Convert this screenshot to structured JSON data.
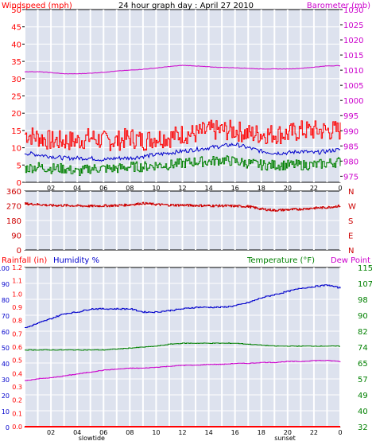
{
  "colors": {
    "wind": "#ff0000",
    "gust_avg": "#0000cc",
    "wind_low": "#008000",
    "baro": "#cc00cc",
    "direction": "#cc0000",
    "humidity": "#0000cc",
    "temperature": "#008000",
    "dewpoint": "#cc00cc",
    "rain": "#ff0000",
    "grid_band": "#dde2ee",
    "grid_line": "#ffffff"
  },
  "chart_data": [
    {
      "type": "line",
      "title": "24 hour graph day : April 27 2010",
      "left_label": "Windspeed (mph)",
      "right_label": "Barometer (mb)",
      "y_left_ticks": [
        "50",
        "45",
        "40",
        "35",
        "30",
        "25",
        "20",
        "15",
        "10",
        "5",
        "0"
      ],
      "y_right_ticks": [
        "1030",
        "1025",
        "1020",
        "1015",
        "1010",
        "1005",
        "1000",
        "995",
        "990",
        "985",
        "980",
        "975"
      ],
      "ylim_left": [
        0,
        50
      ],
      "ylim_right": [
        973,
        1030
      ],
      "x_ticks": [
        "02",
        "04",
        "06",
        "08",
        "10",
        "12",
        "14",
        "16",
        "18",
        "20",
        "22",
        "0"
      ],
      "x_annotations": [
        {
          "text": "slowtide",
          "hour": 5.1
        },
        {
          "text": "sunset",
          "hour": 19.8
        }
      ],
      "series": [
        {
          "name": "Windspeed (mph)",
          "axis": "left",
          "key": "wind",
          "x": [
            0,
            1,
            2,
            3,
            4,
            5,
            6,
            7,
            8,
            9,
            10,
            11,
            12,
            13,
            14,
            15,
            16,
            17,
            18,
            19,
            20,
            21,
            22,
            23,
            24
          ],
          "y": [
            14,
            13,
            12,
            12,
            12,
            13,
            12,
            12,
            13,
            12,
            13,
            13,
            14,
            14,
            15,
            15,
            15,
            14,
            14,
            14,
            14,
            15,
            15,
            15,
            15
          ]
        },
        {
          "name": "",
          "axis": "left",
          "key": "gust_avg",
          "x": [
            0,
            1,
            2,
            3,
            4,
            5,
            6,
            7,
            8,
            9,
            10,
            11,
            12,
            13,
            14,
            15,
            16,
            17,
            18,
            19,
            20,
            21,
            22,
            23,
            24
          ],
          "y": [
            8.5,
            8,
            7.5,
            7,
            7,
            7,
            6.5,
            7,
            7,
            7.5,
            8,
            8.5,
            9,
            9.5,
            10,
            10.5,
            11,
            10,
            9,
            8.5,
            8.5,
            9,
            8.5,
            9,
            9.5
          ]
        },
        {
          "name": "",
          "axis": "left",
          "key": "wind_low",
          "x": [
            0,
            1,
            2,
            3,
            4,
            5,
            6,
            7,
            8,
            9,
            10,
            11,
            12,
            13,
            14,
            15,
            16,
            17,
            18,
            19,
            20,
            21,
            22,
            23,
            24
          ],
          "y": [
            4,
            4.5,
            4,
            4,
            3,
            4,
            4,
            4,
            4.5,
            4.5,
            5,
            5,
            5.5,
            6,
            6,
            6.5,
            6,
            5.5,
            5,
            5,
            5,
            5,
            5,
            5.5,
            6
          ]
        },
        {
          "name": "Barometer (mb)",
          "axis": "right",
          "key": "baro",
          "x": [
            0,
            1,
            2,
            3,
            4,
            5,
            6,
            7,
            8,
            9,
            10,
            11,
            12,
            13,
            14,
            15,
            16,
            17,
            18,
            19,
            20,
            21,
            22,
            23,
            24
          ],
          "y": [
            1009.5,
            1009.5,
            1009.2,
            1008.8,
            1008.8,
            1009,
            1009.3,
            1009.7,
            1010,
            1010.3,
            1010.7,
            1011.2,
            1011.6,
            1011.4,
            1011.1,
            1010.9,
            1010.8,
            1010.6,
            1010.4,
            1010.4,
            1010.4,
            1010.6,
            1011,
            1011.4,
            1011.5
          ]
        }
      ]
    },
    {
      "type": "line",
      "y_left_ticks": [
        "360",
        "270",
        "180",
        "90",
        "0"
      ],
      "y_right_ticks": [
        "N",
        "W",
        "S",
        "E",
        "N"
      ],
      "ylim": [
        0,
        360
      ],
      "series": [
        {
          "name": "",
          "key": "direction",
          "x": [
            0,
            1,
            2,
            3,
            4,
            5,
            6,
            7,
            8,
            9,
            10,
            11,
            12,
            13,
            14,
            15,
            16,
            17,
            18,
            19,
            20,
            21,
            22,
            23,
            24
          ],
          "y": [
            282,
            278,
            272,
            272,
            270,
            268,
            270,
            272,
            276,
            285,
            278,
            274,
            274,
            272,
            270,
            270,
            268,
            266,
            250,
            242,
            246,
            250,
            256,
            260,
            270
          ]
        }
      ]
    },
    {
      "type": "line",
      "left_label_1": "Rainfall (in)",
      "left_label_2": "Humidity %",
      "right_label_1": "Temperature (°F)",
      "right_label_2": "Dew Point",
      "y_left_humidity_ticks": [
        "100",
        "90",
        "80",
        "70",
        "60",
        "50",
        "40",
        "30",
        "20",
        "10",
        "0"
      ],
      "y_left_rain_ticks": [
        "1.2",
        "1.1",
        "1.0",
        "0.9",
        "0.8",
        "0.7",
        "0.6",
        "0.5",
        "0.4",
        "0.3",
        "0.2",
        "0.1",
        "0.0"
      ],
      "y_right_ticks": [
        "115",
        "107",
        "98",
        "90",
        "82",
        "74",
        "65",
        "57",
        "49",
        "40",
        "32"
      ],
      "ylim_humidity": [
        0,
        100
      ],
      "ylim_temp": [
        32,
        115
      ],
      "x_ticks": [
        "02",
        "04",
        "06",
        "08",
        "10",
        "12",
        "14",
        "16",
        "18",
        "20",
        "22",
        "0"
      ],
      "x_annotations": [
        {
          "text": "slowtide",
          "hour": 5.1
        },
        {
          "text": "sunset",
          "hour": 19.8
        }
      ],
      "series": [
        {
          "name": "Humidity %",
          "axis": "left",
          "key": "humidity",
          "x": [
            0,
            1,
            2,
            3,
            4,
            5,
            6,
            7,
            8,
            9,
            10,
            11,
            12,
            13,
            14,
            15,
            16,
            17,
            18,
            19,
            20,
            21,
            22,
            23,
            24
          ],
          "y": [
            62,
            65,
            68,
            71,
            72,
            74,
            74,
            74,
            74,
            72,
            72,
            73,
            74,
            75,
            75,
            75,
            76,
            78,
            81,
            83,
            85,
            87,
            88,
            89,
            87
          ]
        },
        {
          "name": "Temperature (°F)",
          "axis": "right",
          "key": "temperature",
          "x": [
            0,
            1,
            2,
            3,
            4,
            5,
            6,
            7,
            8,
            9,
            10,
            11,
            12,
            13,
            14,
            15,
            16,
            17,
            18,
            19,
            20,
            21,
            22,
            23,
            24
          ],
          "y": [
            72,
            72,
            72,
            72,
            72,
            72,
            72,
            72.5,
            73,
            73.5,
            74,
            75,
            75.5,
            75.5,
            75.5,
            75.5,
            75.5,
            75,
            74.5,
            74,
            74,
            74,
            74,
            74,
            74
          ]
        },
        {
          "name": "Dew Point",
          "axis": "right",
          "key": "dewpoint",
          "x": [
            0,
            1,
            2,
            3,
            4,
            5,
            6,
            7,
            8,
            9,
            10,
            11,
            12,
            13,
            14,
            15,
            16,
            17,
            18,
            19,
            20,
            21,
            22,
            23,
            24
          ],
          "y": [
            56,
            57,
            57.5,
            58.5,
            59.5,
            60.5,
            61.5,
            62,
            62.5,
            62.5,
            63,
            63.5,
            64,
            64,
            64.5,
            64.5,
            65,
            65,
            65.5,
            65.5,
            66,
            66,
            66.5,
            66.5,
            66
          ]
        },
        {
          "name": "Rainfall (in)",
          "axis": "left_rain",
          "key": "rain",
          "x": [
            0,
            24
          ],
          "y": [
            0,
            0
          ]
        }
      ]
    }
  ]
}
